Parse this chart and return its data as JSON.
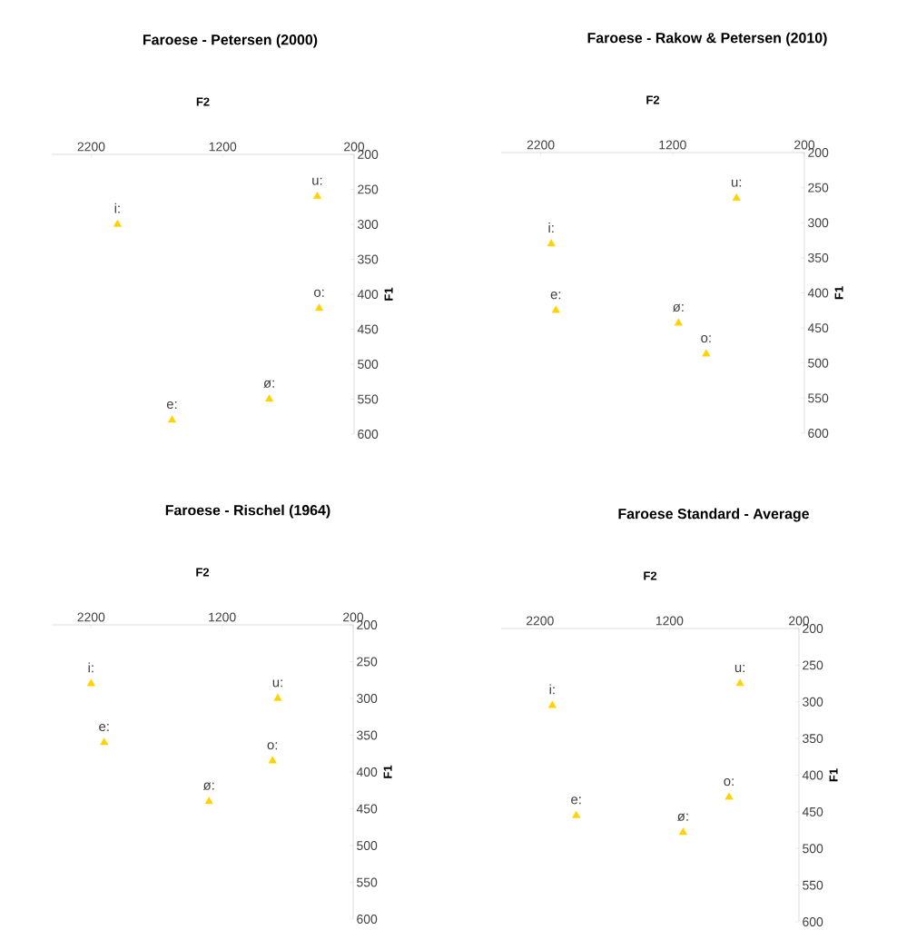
{
  "chart_data": [
    {
      "type": "scatter",
      "title": "Faroese - Petersen (2000)",
      "xlabel": "F2",
      "ylabel": "F1",
      "xlim": [
        2500,
        200
      ],
      "ylim": [
        600,
        200
      ],
      "xticks": [
        2200,
        1200,
        200
      ],
      "yticks": [
        200,
        250,
        300,
        350,
        400,
        450,
        500,
        550,
        600
      ],
      "marker": "triangle",
      "series": [
        {
          "name": "i:",
          "color": "#ffd200",
          "x": [
            2000
          ],
          "values": [
            300
          ]
        },
        {
          "name": "u:",
          "color": "#ffd200",
          "x": [
            480
          ],
          "values": [
            260
          ]
        },
        {
          "name": "o:",
          "color": "#ffd200",
          "x": [
            465
          ],
          "values": [
            420
          ]
        },
        {
          "name": "ø:",
          "color": "#ffd200",
          "x": [
            845
          ],
          "values": [
            550
          ]
        },
        {
          "name": "e:",
          "color": "#ffd200",
          "x": [
            1585
          ],
          "values": [
            580
          ]
        }
      ]
    },
    {
      "type": "scatter",
      "title": "Faroese - Rakow & Petersen (2010)",
      "xlabel": "F2",
      "ylabel": "F1",
      "xlim": [
        2500,
        200
      ],
      "ylim": [
        600,
        200
      ],
      "xticks": [
        2200,
        1200,
        200
      ],
      "yticks": [
        200,
        250,
        300,
        350,
        400,
        450,
        500,
        550,
        600
      ],
      "marker": "triangle",
      "series": [
        {
          "name": "u:",
          "color": "#ffd200",
          "x": [
            715
          ],
          "values": [
            265
          ]
        },
        {
          "name": "i:",
          "color": "#ffd200",
          "x": [
            2120
          ],
          "values": [
            330
          ]
        },
        {
          "name": "e:",
          "color": "#ffd200",
          "x": [
            2085
          ],
          "values": [
            425
          ]
        },
        {
          "name": "ø:",
          "color": "#ffd200",
          "x": [
            1155
          ],
          "values": [
            443
          ]
        },
        {
          "name": "o:",
          "color": "#ffd200",
          "x": [
            945
          ],
          "values": [
            487
          ]
        }
      ]
    },
    {
      "type": "scatter",
      "title": "Faroese - Rischel (1964)",
      "xlabel": "F2",
      "ylabel": "F1",
      "xlim": [
        2500,
        200
      ],
      "ylim": [
        600,
        200
      ],
      "xticks": [
        2200,
        1200,
        200
      ],
      "yticks": [
        200,
        250,
        300,
        350,
        400,
        450,
        500,
        550,
        600
      ],
      "marker": "triangle",
      "series": [
        {
          "name": "i:",
          "color": "#ffd200",
          "x": [
            2200
          ],
          "values": [
            280
          ]
        },
        {
          "name": "e:",
          "color": "#ffd200",
          "x": [
            2100
          ],
          "values": [
            360
          ]
        },
        {
          "name": "u:",
          "color": "#ffd200",
          "x": [
            775
          ],
          "values": [
            300
          ]
        },
        {
          "name": "o:",
          "color": "#ffd200",
          "x": [
            815
          ],
          "values": [
            385
          ]
        },
        {
          "name": "ø:",
          "color": "#ffd200",
          "x": [
            1300
          ],
          "values": [
            440
          ]
        }
      ]
    },
    {
      "type": "scatter",
      "title": "Faroese Standard - Average",
      "xlabel": "F2",
      "ylabel": "F1",
      "xlim": [
        2500,
        200
      ],
      "ylim": [
        600,
        200
      ],
      "xticks": [
        2200,
        1200,
        200
      ],
      "yticks": [
        200,
        250,
        300,
        350,
        400,
        450,
        500,
        550,
        600
      ],
      "marker": "triangle",
      "series": [
        {
          "name": "i:",
          "color": "#ffd200",
          "x": [
            2105
          ],
          "values": [
            305
          ]
        },
        {
          "name": "u:",
          "color": "#ffd200",
          "x": [
            655
          ],
          "values": [
            275
          ]
        },
        {
          "name": "e:",
          "color": "#ffd200",
          "x": [
            1920
          ],
          "values": [
            455
          ]
        },
        {
          "name": "ø:",
          "color": "#ffd200",
          "x": [
            1095
          ],
          "values": [
            478
          ]
        },
        {
          "name": "o:",
          "color": "#ffd200",
          "x": [
            740
          ],
          "values": [
            430
          ]
        }
      ]
    }
  ]
}
